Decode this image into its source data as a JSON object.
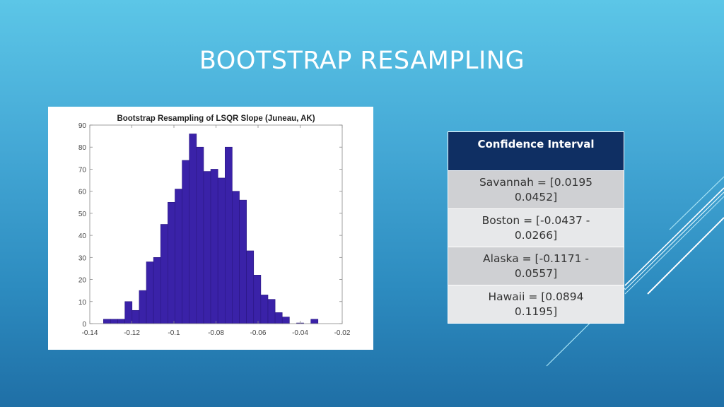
{
  "slide": {
    "title": "BOOTSTRAP RESAMPLING",
    "colors": {
      "background_top": "#5cc6e7",
      "background_bottom": "#1f6fa6",
      "table_header": "#0f2f63",
      "table_row_odd": "#cfd0d3",
      "table_row_even": "#e7e8ea",
      "bar_fill": "#3a22a8"
    }
  },
  "table": {
    "header": "Confidence Interval",
    "rows": [
      {
        "line1": "Savannah = [0.0195",
        "line2": "0.0452]"
      },
      {
        "line1": "Boston = [-0.0437   -",
        "line2": "0.0266]"
      },
      {
        "line1": "Alaska = [-0.1171   -",
        "line2": "0.0557]"
      },
      {
        "line1": "Hawaii = [0.0894",
        "line2": "0.1195]"
      }
    ]
  },
  "chart_data": {
    "type": "bar",
    "subtype": "histogram",
    "title": "Bootstrap Resampling of LSQR Slope (Juneau, AK)",
    "xlabel": "",
    "ylabel": "",
    "xlim": [
      -0.14,
      -0.02
    ],
    "ylim": [
      0,
      90
    ],
    "xticks": [
      "-0.14",
      "-0.12",
      "-0.1",
      "-0.08",
      "-0.06",
      "-0.04",
      "-0.02"
    ],
    "yticks": [
      "0",
      "10",
      "20",
      "30",
      "40",
      "50",
      "60",
      "70",
      "80",
      "90"
    ],
    "grid": false,
    "bin_width": 0.0034,
    "bin_start": -0.1335,
    "values": [
      2,
      2,
      2,
      10,
      6,
      15,
      28,
      30,
      45,
      55,
      61,
      74,
      86,
      80,
      69,
      70,
      66,
      80,
      60,
      56,
      33,
      22,
      13,
      11,
      5,
      3,
      0,
      0.3,
      0,
      2
    ],
    "bar_color": "#3a22a8"
  }
}
